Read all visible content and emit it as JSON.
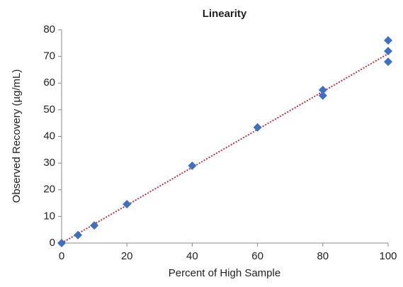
{
  "chart_data": {
    "type": "scatter",
    "title": "Linearity",
    "x_label": "Percent of High Sample",
    "y_label": "Observed Recovery (µg/mL)",
    "x": [
      0,
      5,
      10,
      20,
      40,
      60,
      80,
      80,
      100,
      100,
      100
    ],
    "values": [
      0,
      3,
      6.6,
      14.6,
      29,
      43.4,
      57.4,
      55.3,
      76,
      72,
      68
    ],
    "color": "#3d6fc2",
    "trendline": {
      "x": [
        0,
        100
      ],
      "y": [
        0,
        71
      ],
      "color": "#c0304a"
    },
    "xlim": [
      0,
      100
    ],
    "xticks": [
      0,
      20,
      40,
      60,
      80,
      100
    ],
    "ylim": [
      0,
      80
    ],
    "yticks": [
      0,
      10,
      20,
      30,
      40,
      50,
      60,
      70,
      80
    ]
  }
}
